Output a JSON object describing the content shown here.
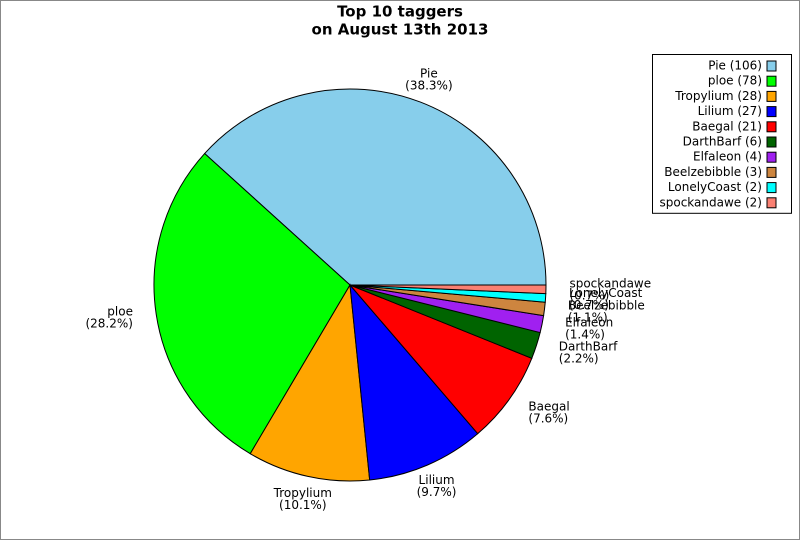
{
  "chart_data": {
    "type": "pie",
    "title": [
      "Top 10 taggers",
      "on August 13th 2013"
    ],
    "categories": [
      "Pie",
      "ploe",
      "Tropylium",
      "Lilium",
      "Baegal",
      "DarthBarf",
      "Elfaleon",
      "Beelzebibble",
      "LonelyCoast",
      "spockandawe"
    ],
    "values": [
      38.3,
      28.2,
      10.1,
      9.7,
      7.6,
      2.2,
      1.4,
      1.1,
      0.7,
      0.7
    ],
    "value_labels": [
      "(38.3%)",
      "(28.2%)",
      "(10.1%)",
      "(9.7%)",
      "(7.6%)",
      "(2.2%)",
      "(1.4%)",
      "(1.1%)",
      "(0.7%)",
      "(0.7%)"
    ],
    "colors": [
      "#87ceeb",
      "#00ff00",
      "#ffa500",
      "#0000ff",
      "#ff0000",
      "#006400",
      "#a020f0",
      "#cd853f",
      "#00ffff",
      "#fa8072"
    ],
    "legend_labels": [
      "Pie (106)",
      "ploe (78)",
      "Tropylium (28)",
      "Lilium (27)",
      "Baegal (21)",
      "DarthBarf (6)",
      "Elfaleon (4)",
      "Beelzebibble (3)",
      "LonelyCoast (2)",
      "spockandawe (2)"
    ],
    "legend": "upper right"
  }
}
